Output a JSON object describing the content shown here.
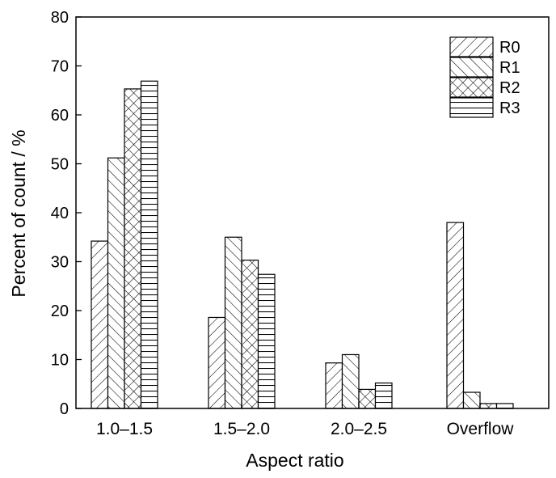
{
  "chart_data": {
    "type": "bar",
    "title": "",
    "xlabel": "Aspect ratio",
    "ylabel": "Percent of count / %",
    "categories": [
      "1.0–1.5",
      "1.5–2.0",
      "2.0–2.5",
      "Overflow"
    ],
    "ylim": [
      0,
      80
    ],
    "yticks": [
      0,
      10,
      20,
      30,
      40,
      50,
      60,
      70,
      80
    ],
    "grid": false,
    "legend_position": "top-right",
    "series": [
      {
        "name": "R0",
        "pattern": "forward-hatch",
        "values": [
          34.2,
          18.6,
          9.3,
          38.0
        ]
      },
      {
        "name": "R1",
        "pattern": "back-hatch",
        "values": [
          51.2,
          35.0,
          11.0,
          3.3
        ]
      },
      {
        "name": "R2",
        "pattern": "cross-hatch",
        "values": [
          65.3,
          30.3,
          3.9,
          1.0
        ]
      },
      {
        "name": "R3",
        "pattern": "horizontal-lines",
        "values": [
          66.9,
          27.4,
          5.2,
          1.0
        ]
      }
    ],
    "colors": {
      "stroke": "#000000",
      "fill": "#ffffff"
    }
  }
}
